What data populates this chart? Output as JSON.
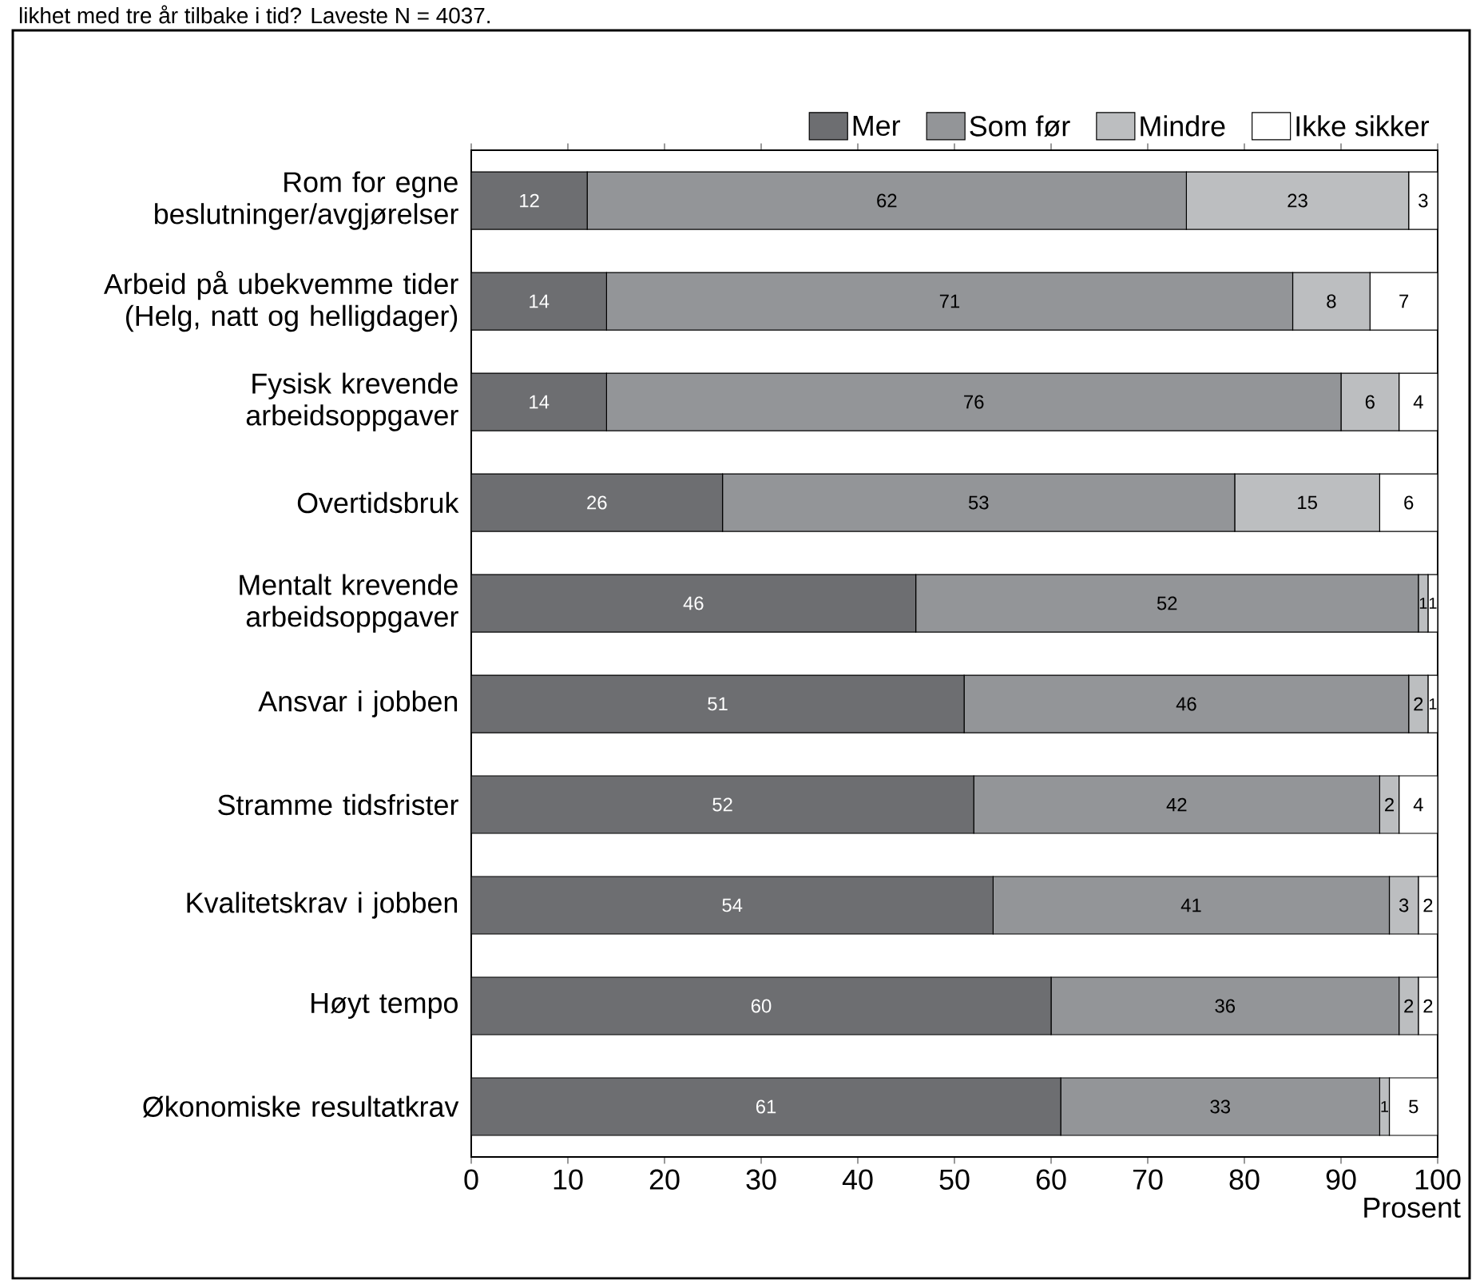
{
  "chart_data": {
    "type": "bar",
    "orientation": "horizontal",
    "stacked": true,
    "title": "likhet med tre år tilbake i tid? Laveste N = 4037.",
    "xlabel": "Prosent",
    "categories": [
      "Rom for egne beslutninger/avgjørelser",
      "Arbeid på ubekvemme tider (Helg, natt og helligdager)",
      "Fysisk krevende arbeidsoppgaver",
      "Overtidsbruk",
      "Mentalt krevende arbeidsoppgaver",
      "Ansvar i jobben",
      "Stramme tidsfrister",
      "Kvalitetskrav i jobben",
      "Høyt tempo",
      "Økonomiske resultatkrav"
    ],
    "series": [
      {
        "name": "Mer",
        "color": "#6d6e71",
        "values": [
          12,
          14,
          14,
          26,
          46,
          51,
          52,
          54,
          60,
          61
        ]
      },
      {
        "name": "Som før",
        "color": "#939598",
        "values": [
          62,
          71,
          76,
          53,
          52,
          46,
          42,
          41,
          36,
          33
        ]
      },
      {
        "name": "Mindre",
        "color": "#bcbec0",
        "values": [
          23,
          8,
          6,
          15,
          1,
          2,
          2,
          3,
          2,
          1
        ]
      },
      {
        "name": "Ikke sikker",
        "color": "#ffffff",
        "values": [
          3,
          7,
          4,
          6,
          1,
          1,
          4,
          2,
          2,
          5
        ]
      }
    ],
    "xlim": [
      0,
      100
    ],
    "xticks": [
      0,
      10,
      20,
      30,
      40,
      50,
      60,
      70,
      80,
      90,
      100
    ],
    "data_labels": true,
    "legend": "top right",
    "grid": false
  }
}
